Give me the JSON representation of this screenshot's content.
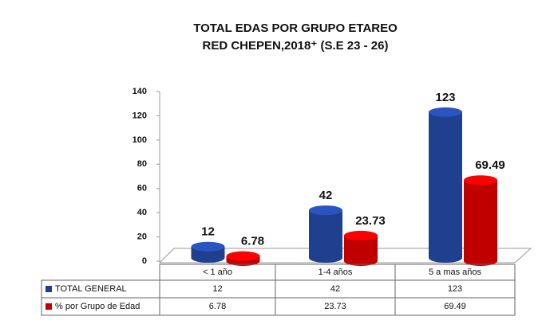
{
  "chart_data": {
    "type": "bar",
    "title": "TOTAL EDAS POR GRUPO ETAREO",
    "subtitle": "RED CHEPEN,2018⁺ (S.E 23 - 26)",
    "categories": [
      "< 1 año",
      "1-4 años",
      "5 a mas años"
    ],
    "series": [
      {
        "name": "TOTAL GENERAL",
        "color": "#1f3f8f",
        "values": [
          12,
          42,
          123
        ]
      },
      {
        "name": "% por Grupo de Edad",
        "color": "#c00000",
        "values": [
          6.78,
          23.73,
          69.49
        ]
      }
    ],
    "ylim": [
      0,
      140
    ],
    "yticks": [
      0,
      20,
      40,
      60,
      80,
      100,
      120,
      140
    ],
    "grid": false
  }
}
